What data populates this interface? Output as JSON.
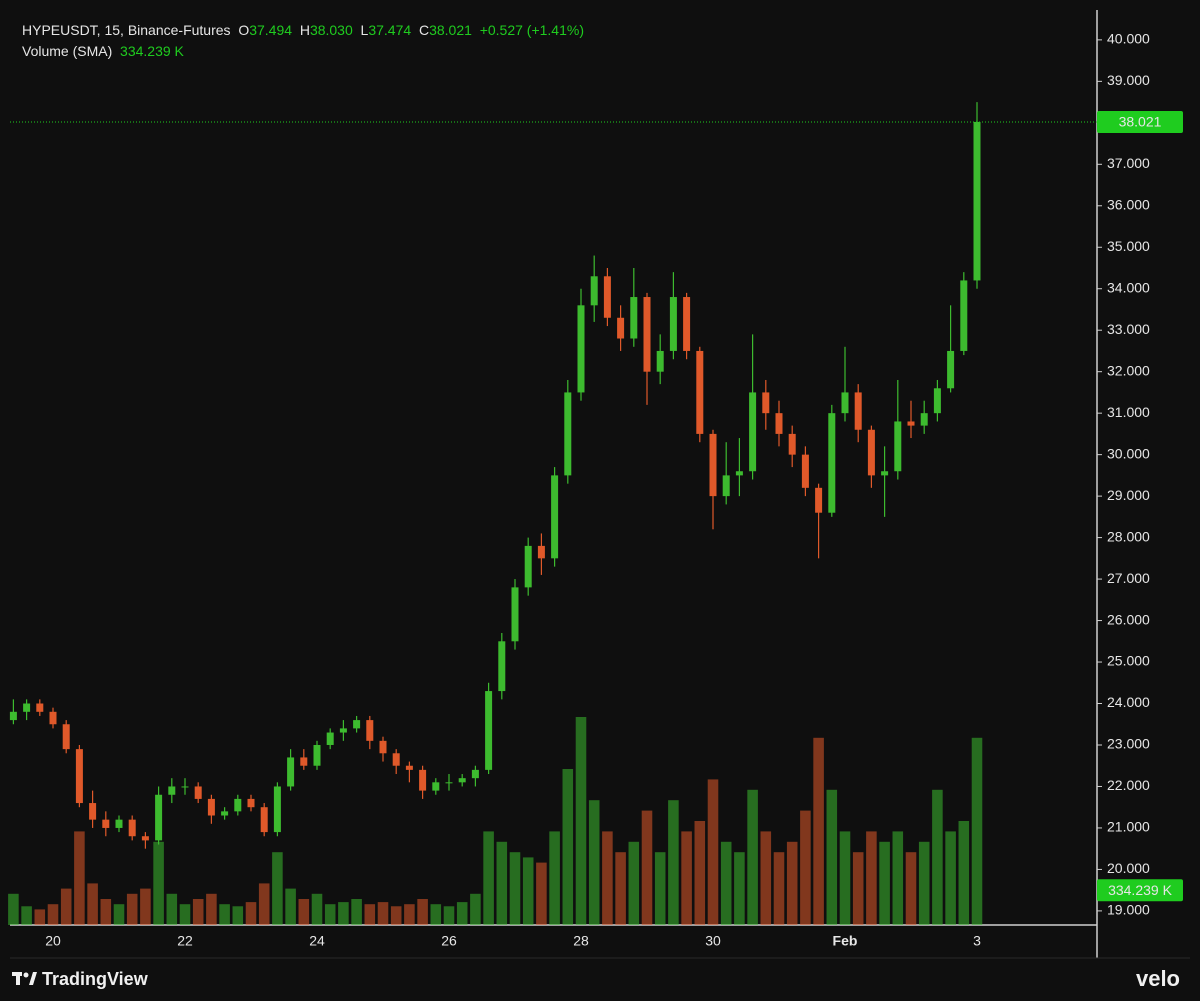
{
  "chart_data": {
    "type": "candlestick",
    "header": {
      "symbol": "HYPEUSDT, 15, Binance-Futures",
      "ohlc": [
        {
          "label": "O",
          "value": "37.494"
        },
        {
          "label": "H",
          "value": "38.030"
        },
        {
          "label": "L",
          "value": "37.474"
        },
        {
          "label": "C",
          "value": "38.021"
        }
      ],
      "change": "+0.527 (+1.41%)",
      "volume_title": "Volume (SMA)"
    },
    "categories": [
      null,
      null,
      null,
      "20",
      null,
      null,
      null,
      null,
      null,
      null,
      null,
      null,
      null,
      "22",
      null,
      null,
      null,
      null,
      null,
      null,
      null,
      null,
      null,
      "24",
      null,
      null,
      null,
      null,
      null,
      null,
      null,
      null,
      null,
      "26",
      null,
      null,
      null,
      null,
      null,
      null,
      null,
      null,
      null,
      "28",
      null,
      null,
      null,
      null,
      null,
      null,
      null,
      null,
      null,
      "30",
      null,
      null,
      null,
      null,
      null,
      null,
      null,
      null,
      null,
      "Feb",
      null,
      null,
      null,
      null,
      null,
      null,
      null,
      null,
      null,
      "3"
    ],
    "open": [
      23.6,
      23.8,
      24.0,
      23.8,
      23.5,
      22.9,
      21.6,
      21.2,
      21.0,
      21.2,
      20.8,
      20.7,
      21.8,
      22.0,
      22.0,
      21.7,
      21.3,
      21.4,
      21.7,
      21.5,
      20.9,
      22.0,
      22.7,
      22.5,
      23.0,
      23.3,
      23.4,
      23.6,
      23.1,
      22.8,
      22.5,
      22.4,
      21.9,
      22.1,
      22.1,
      22.2,
      22.4,
      24.3,
      25.5,
      26.8,
      27.8,
      27.5,
      29.5,
      31.5,
      33.6,
      34.3,
      33.3,
      32.8,
      33.8,
      32.0,
      32.5,
      33.8,
      32.5,
      30.5,
      29.0,
      29.5,
      29.6,
      31.5,
      31.0,
      30.5,
      30.0,
      29.2,
      28.6,
      31.0,
      31.5,
      30.6,
      29.5,
      29.6,
      30.8,
      30.7,
      31.0,
      31.6,
      32.5,
      34.2
    ],
    "high": [
      24.1,
      24.1,
      24.1,
      23.9,
      23.6,
      23.0,
      21.9,
      21.4,
      21.3,
      21.3,
      20.9,
      22.0,
      22.2,
      22.2,
      22.1,
      21.8,
      21.5,
      21.8,
      21.8,
      21.6,
      22.1,
      22.9,
      22.9,
      23.1,
      23.4,
      23.6,
      23.7,
      23.7,
      23.2,
      22.9,
      22.6,
      22.5,
      22.2,
      22.3,
      22.3,
      22.5,
      24.5,
      25.7,
      27.0,
      28.0,
      28.1,
      29.7,
      31.8,
      34.0,
      34.8,
      34.5,
      33.6,
      34.5,
      33.9,
      32.9,
      34.4,
      33.9,
      32.6,
      30.6,
      30.3,
      30.4,
      32.9,
      31.8,
      31.3,
      30.7,
      30.2,
      29.3,
      31.2,
      32.6,
      31.7,
      30.7,
      30.2,
      31.8,
      31.3,
      31.3,
      31.8,
      33.6,
      34.4,
      38.5
    ],
    "low": [
      23.5,
      23.6,
      23.7,
      23.4,
      22.8,
      21.5,
      21.0,
      20.8,
      20.9,
      20.7,
      20.5,
      20.6,
      21.6,
      21.8,
      21.6,
      21.1,
      21.2,
      21.3,
      21.4,
      20.8,
      20.8,
      21.9,
      22.4,
      22.4,
      22.9,
      23.1,
      23.3,
      22.9,
      22.6,
      22.3,
      22.1,
      21.7,
      21.8,
      21.9,
      22.0,
      22.0,
      22.3,
      24.1,
      25.3,
      26.6,
      27.1,
      27.3,
      29.3,
      31.3,
      33.2,
      33.1,
      32.5,
      32.6,
      31.2,
      31.7,
      32.3,
      32.3,
      30.3,
      28.2,
      28.8,
      29.0,
      29.4,
      30.6,
      30.2,
      29.7,
      29.0,
      27.5,
      28.5,
      30.8,
      30.3,
      29.2,
      28.5,
      29.4,
      30.4,
      30.5,
      30.8,
      31.5,
      32.4,
      34.0
    ],
    "close": [
      23.8,
      24.0,
      23.8,
      23.5,
      22.9,
      21.6,
      21.2,
      21.0,
      21.2,
      20.8,
      20.7,
      21.8,
      22.0,
      22.0,
      21.7,
      21.3,
      21.4,
      21.7,
      21.5,
      20.9,
      22.0,
      22.7,
      22.5,
      23.0,
      23.3,
      23.4,
      23.6,
      23.1,
      22.8,
      22.5,
      22.4,
      21.9,
      22.1,
      22.1,
      22.2,
      22.4,
      24.3,
      25.5,
      26.8,
      27.8,
      27.5,
      29.5,
      31.5,
      33.6,
      34.3,
      33.3,
      32.8,
      33.8,
      32.0,
      32.5,
      33.8,
      32.5,
      30.5,
      29.0,
      29.5,
      29.6,
      31.5,
      31.0,
      30.5,
      30.0,
      29.2,
      28.6,
      31.0,
      31.5,
      30.6,
      29.5,
      29.6,
      30.8,
      30.7,
      31.0,
      31.6,
      32.5,
      34.2,
      38.021
    ],
    "volume": [
      300,
      180,
      150,
      200,
      350,
      900,
      400,
      250,
      200,
      300,
      350,
      800,
      300,
      200,
      250,
      300,
      200,
      180,
      220,
      400,
      700,
      350,
      250,
      300,
      200,
      220,
      250,
      200,
      220,
      180,
      200,
      250,
      200,
      180,
      220,
      300,
      900,
      800,
      700,
      650,
      600,
      900,
      1500,
      2000,
      1200,
      900,
      700,
      800,
      1100,
      700,
      1200,
      900,
      1000,
      1400,
      800,
      700,
      1300,
      900,
      700,
      800,
      1100,
      1800,
      1300,
      900,
      700,
      900,
      800,
      900,
      700,
      800,
      1300,
      900,
      1000,
      1800
    ],
    "y2lim": [
      0,
      2500
    ],
    "volume_sma": {
      "value": 334.239,
      "label": "334.239 K"
    },
    "last_price": 38.021,
    "ylim": [
      18.66,
      40.72
    ],
    "yticks": [
      {
        "value": 19,
        "label": "19.000"
      },
      {
        "value": 20,
        "label": "20.000"
      },
      {
        "value": 21,
        "label": "21.000"
      },
      {
        "value": 22,
        "label": "22.000"
      },
      {
        "value": 23,
        "label": "23.000"
      },
      {
        "value": 24,
        "label": "24.000"
      },
      {
        "value": 25,
        "label": "25.000"
      },
      {
        "value": 26,
        "label": "26.000"
      },
      {
        "value": 27,
        "label": "27.000"
      },
      {
        "value": 28,
        "label": "28.000"
      },
      {
        "value": 29,
        "label": "29.000"
      },
      {
        "value": 30,
        "label": "30.000"
      },
      {
        "value": 31,
        "label": "31.000"
      },
      {
        "value": 32,
        "label": "32.000"
      },
      {
        "value": 33,
        "label": "33.000"
      },
      {
        "value": 34,
        "label": "34.000"
      },
      {
        "value": 35,
        "label": "35.000"
      },
      {
        "value": 36,
        "label": "36.000"
      },
      {
        "value": 37,
        "label": "37.000"
      },
      {
        "value": 38,
        "label": "38.000"
      },
      {
        "value": 39,
        "label": "39.000"
      },
      {
        "value": 40,
        "label": "40.000"
      }
    ],
    "up_color": "#3dbb2f",
    "down_color": "#e0592a",
    "accent_color": "#1fcc1f"
  },
  "footer": {
    "brand": "TradingView",
    "source": "velo"
  }
}
